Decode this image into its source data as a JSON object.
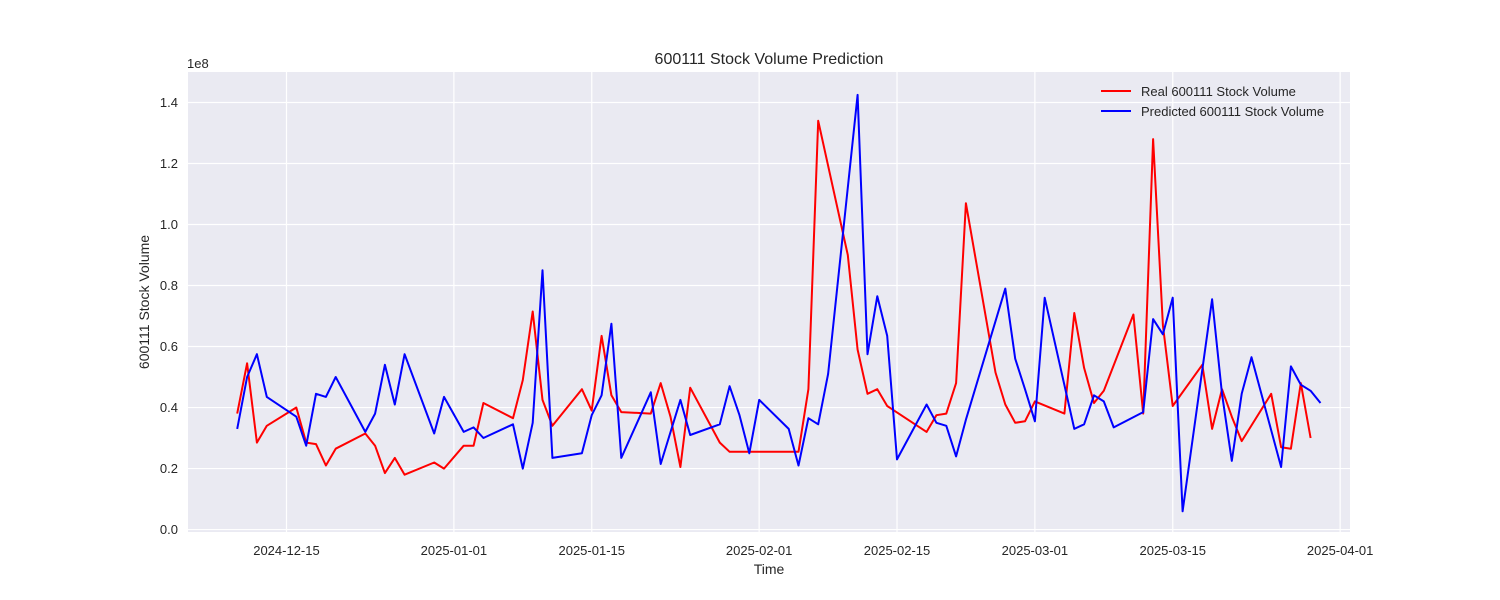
{
  "chart_data": {
    "type": "line",
    "title": "600111 Stock Volume Prediction",
    "xlabel": "Time",
    "ylabel": "600111 Stock Volume",
    "y_offset_label": "1e8",
    "ylim": [
      -0.008,
      1.5
    ],
    "xlim": [
      "2024-12-05",
      "2025-04-02"
    ],
    "yticks": [
      0.0,
      0.2,
      0.4,
      0.6,
      0.8,
      1.0,
      1.2,
      1.4
    ],
    "ytick_labels": [
      "0.0",
      "0.2",
      "0.4",
      "0.6",
      "0.8",
      "1.0",
      "1.2",
      "1.4"
    ],
    "xticks": [
      "2024-12-15",
      "2025-01-01",
      "2025-01-15",
      "2025-02-01",
      "2025-02-15",
      "2025-03-01",
      "2025-03-15",
      "2025-04-01"
    ],
    "grid": true,
    "legend_position": "top-right",
    "background": "#eaeaf2",
    "series": [
      {
        "name": "Real 600111 Stock Volume",
        "color": "#ff0000",
        "points": [
          [
            "2024-12-10",
            0.38
          ],
          [
            "2024-12-11",
            0.545
          ],
          [
            "2024-12-12",
            0.285
          ],
          [
            "2024-12-13",
            0.34
          ],
          [
            "2024-12-16",
            0.4
          ],
          [
            "2024-12-17",
            0.285
          ],
          [
            "2024-12-18",
            0.28
          ],
          [
            "2024-12-19",
            0.21
          ],
          [
            "2024-12-20",
            0.265
          ],
          [
            "2024-12-23",
            0.315
          ],
          [
            "2024-12-24",
            0.275
          ],
          [
            "2024-12-25",
            0.185
          ],
          [
            "2024-12-26",
            0.235
          ],
          [
            "2024-12-27",
            0.18
          ],
          [
            "2024-12-30",
            0.22
          ],
          [
            "2024-12-31",
            0.2
          ],
          [
            "2025-01-02",
            0.275
          ],
          [
            "2025-01-03",
            0.275
          ],
          [
            "2025-01-04",
            0.415
          ],
          [
            "2025-01-07",
            0.365
          ],
          [
            "2025-01-08",
            0.49
          ],
          [
            "2025-01-09",
            0.715
          ],
          [
            "2025-01-10",
            0.425
          ],
          [
            "2025-01-11",
            0.34
          ],
          [
            "2025-01-14",
            0.46
          ],
          [
            "2025-01-15",
            0.39
          ],
          [
            "2025-01-16",
            0.635
          ],
          [
            "2025-01-17",
            0.44
          ],
          [
            "2025-01-18",
            0.385
          ],
          [
            "2025-01-21",
            0.38
          ],
          [
            "2025-01-22",
            0.48
          ],
          [
            "2025-01-23",
            0.37
          ],
          [
            "2025-01-24",
            0.205
          ],
          [
            "2025-01-25",
            0.465
          ],
          [
            "2025-01-28",
            0.285
          ],
          [
            "2025-01-29",
            0.255
          ],
          [
            "2025-02-05",
            0.255
          ],
          [
            "2025-02-06",
            0.46
          ],
          [
            "2025-02-07",
            1.34
          ],
          [
            "2025-02-10",
            0.9
          ],
          [
            "2025-02-11",
            0.59
          ],
          [
            "2025-02-12",
            0.445
          ],
          [
            "2025-02-13",
            0.46
          ],
          [
            "2025-02-14",
            0.405
          ],
          [
            "2025-02-18",
            0.32
          ],
          [
            "2025-02-19",
            0.375
          ],
          [
            "2025-02-20",
            0.38
          ],
          [
            "2025-02-21",
            0.48
          ],
          [
            "2025-02-22",
            1.07
          ],
          [
            "2025-02-25",
            0.515
          ],
          [
            "2025-02-26",
            0.41
          ],
          [
            "2025-02-27",
            0.35
          ],
          [
            "2025-02-28",
            0.355
          ],
          [
            "2025-03-01",
            0.42
          ],
          [
            "2025-03-04",
            0.38
          ],
          [
            "2025-03-05",
            0.71
          ],
          [
            "2025-03-06",
            0.53
          ],
          [
            "2025-03-07",
            0.415
          ],
          [
            "2025-03-08",
            0.455
          ],
          [
            "2025-03-11",
            0.705
          ],
          [
            "2025-03-12",
            0.38
          ],
          [
            "2025-03-13",
            1.28
          ],
          [
            "2025-03-14",
            0.67
          ],
          [
            "2025-03-15",
            0.405
          ],
          [
            "2025-03-18",
            0.54
          ],
          [
            "2025-03-19",
            0.33
          ],
          [
            "2025-03-20",
            0.46
          ],
          [
            "2025-03-21",
            0.37
          ],
          [
            "2025-03-22",
            0.29
          ],
          [
            "2025-03-25",
            0.445
          ],
          [
            "2025-03-26",
            0.27
          ],
          [
            "2025-03-27",
            0.265
          ],
          [
            "2025-03-28",
            0.48
          ],
          [
            "2025-03-29",
            0.3
          ]
        ]
      },
      {
        "name": "Predicted 600111 Stock Volume",
        "color": "#0000ff",
        "points": [
          [
            "2024-12-10",
            0.33
          ],
          [
            "2024-12-11",
            0.5
          ],
          [
            "2024-12-12",
            0.575
          ],
          [
            "2024-12-13",
            0.435
          ],
          [
            "2024-12-16",
            0.37
          ],
          [
            "2024-12-17",
            0.275
          ],
          [
            "2024-12-18",
            0.445
          ],
          [
            "2024-12-19",
            0.435
          ],
          [
            "2024-12-20",
            0.5
          ],
          [
            "2024-12-23",
            0.32
          ],
          [
            "2024-12-24",
            0.38
          ],
          [
            "2024-12-25",
            0.54
          ],
          [
            "2024-12-26",
            0.41
          ],
          [
            "2024-12-27",
            0.575
          ],
          [
            "2024-12-30",
            0.315
          ],
          [
            "2024-12-31",
            0.435
          ],
          [
            "2025-01-02",
            0.32
          ],
          [
            "2025-01-03",
            0.335
          ],
          [
            "2025-01-04",
            0.3
          ],
          [
            "2025-01-07",
            0.345
          ],
          [
            "2025-01-08",
            0.2
          ],
          [
            "2025-01-09",
            0.35
          ],
          [
            "2025-01-10",
            0.85
          ],
          [
            "2025-01-11",
            0.235
          ],
          [
            "2025-01-14",
            0.25
          ],
          [
            "2025-01-15",
            0.375
          ],
          [
            "2025-01-16",
            0.44
          ],
          [
            "2025-01-17",
            0.675
          ],
          [
            "2025-01-18",
            0.235
          ],
          [
            "2025-01-21",
            0.45
          ],
          [
            "2025-01-22",
            0.215
          ],
          [
            "2025-01-24",
            0.425
          ],
          [
            "2025-01-25",
            0.31
          ],
          [
            "2025-01-28",
            0.345
          ],
          [
            "2025-01-29",
            0.47
          ],
          [
            "2025-01-30",
            0.375
          ],
          [
            "2025-01-31",
            0.25
          ],
          [
            "2025-02-01",
            0.425
          ],
          [
            "2025-02-04",
            0.33
          ],
          [
            "2025-02-05",
            0.21
          ],
          [
            "2025-02-06",
            0.365
          ],
          [
            "2025-02-07",
            0.345
          ],
          [
            "2025-02-08",
            0.51
          ],
          [
            "2025-02-11",
            1.425
          ],
          [
            "2025-02-12",
            0.575
          ],
          [
            "2025-02-13",
            0.765
          ],
          [
            "2025-02-14",
            0.635
          ],
          [
            "2025-02-15",
            0.23
          ],
          [
            "2025-02-18",
            0.41
          ],
          [
            "2025-02-19",
            0.35
          ],
          [
            "2025-02-20",
            0.34
          ],
          [
            "2025-02-21",
            0.24
          ],
          [
            "2025-02-22",
            0.36
          ],
          [
            "2025-02-26",
            0.79
          ],
          [
            "2025-02-27",
            0.56
          ],
          [
            "2025-02-28",
            0.46
          ],
          [
            "2025-03-01",
            0.355
          ],
          [
            "2025-03-02",
            0.76
          ],
          [
            "2025-03-05",
            0.33
          ],
          [
            "2025-03-06",
            0.345
          ],
          [
            "2025-03-07",
            0.44
          ],
          [
            "2025-03-08",
            0.42
          ],
          [
            "2025-03-09",
            0.335
          ],
          [
            "2025-03-12",
            0.385
          ],
          [
            "2025-03-13",
            0.69
          ],
          [
            "2025-03-14",
            0.64
          ],
          [
            "2025-03-15",
            0.76
          ],
          [
            "2025-03-16",
            0.06
          ],
          [
            "2025-03-19",
            0.755
          ],
          [
            "2025-03-20",
            0.445
          ],
          [
            "2025-03-21",
            0.225
          ],
          [
            "2025-03-22",
            0.445
          ],
          [
            "2025-03-23",
            0.565
          ],
          [
            "2025-03-26",
            0.205
          ],
          [
            "2025-03-27",
            0.535
          ],
          [
            "2025-03-28",
            0.475
          ],
          [
            "2025-03-29",
            0.455
          ],
          [
            "2025-03-30",
            0.415
          ]
        ]
      }
    ]
  }
}
